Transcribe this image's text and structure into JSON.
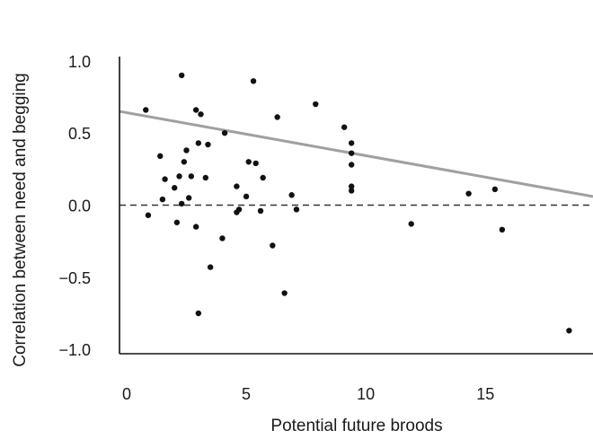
{
  "chart_data": {
    "type": "scatter",
    "xlabel": "Potential future broods",
    "ylabel": "Correlation between need and begging",
    "xlim": [
      -0.3,
      19.5
    ],
    "ylim": [
      -1.03,
      1.03
    ],
    "xticks": [
      0,
      5,
      10,
      15
    ],
    "yticks": [
      1.0,
      0.5,
      0.0,
      -0.5,
      -1.0
    ],
    "ytick_labels": [
      "1.0",
      "0.5",
      "0.0",
      "−0.5",
      "−1.0"
    ],
    "grid": false,
    "zero_line": {
      "y": 0,
      "style": "dashed"
    },
    "trend_line": {
      "x": [
        -0.3,
        19.5
      ],
      "y": [
        0.65,
        0.06
      ],
      "color": "#a0a0a0"
    },
    "points": [
      {
        "x": 0.8,
        "y": 0.66
      },
      {
        "x": 0.9,
        "y": -0.07
      },
      {
        "x": 1.4,
        "y": 0.34
      },
      {
        "x": 1.5,
        "y": 0.04
      },
      {
        "x": 1.6,
        "y": 0.18
      },
      {
        "x": 2.0,
        "y": 0.12
      },
      {
        "x": 2.1,
        "y": -0.12
      },
      {
        "x": 2.2,
        "y": 0.2
      },
      {
        "x": 2.3,
        "y": 0.01
      },
      {
        "x": 2.3,
        "y": 0.9
      },
      {
        "x": 2.4,
        "y": 0.3
      },
      {
        "x": 2.5,
        "y": 0.38
      },
      {
        "x": 2.6,
        "y": 0.05
      },
      {
        "x": 2.7,
        "y": 0.2
      },
      {
        "x": 2.9,
        "y": 0.66
      },
      {
        "x": 3.0,
        "y": 0.43
      },
      {
        "x": 2.9,
        "y": -0.15
      },
      {
        "x": 3.1,
        "y": 0.63
      },
      {
        "x": 3.0,
        "y": -0.75
      },
      {
        "x": 3.3,
        "y": 0.19
      },
      {
        "x": 3.4,
        "y": 0.42
      },
      {
        "x": 3.5,
        "y": -0.43
      },
      {
        "x": 4.1,
        "y": 0.5
      },
      {
        "x": 4.0,
        "y": -0.23
      },
      {
        "x": 4.6,
        "y": 0.13
      },
      {
        "x": 4.7,
        "y": -0.03
      },
      {
        "x": 4.6,
        "y": -0.05
      },
      {
        "x": 5.1,
        "y": 0.3
      },
      {
        "x": 5.0,
        "y": 0.06
      },
      {
        "x": 5.3,
        "y": 0.86
      },
      {
        "x": 5.4,
        "y": 0.29
      },
      {
        "x": 5.6,
        "y": -0.04
      },
      {
        "x": 5.7,
        "y": 0.19
      },
      {
        "x": 6.1,
        "y": -0.28
      },
      {
        "x": 6.3,
        "y": 0.61
      },
      {
        "x": 6.6,
        "y": -0.61
      },
      {
        "x": 6.9,
        "y": 0.07
      },
      {
        "x": 7.1,
        "y": -0.03
      },
      {
        "x": 7.9,
        "y": 0.7
      },
      {
        "x": 9.1,
        "y": 0.54
      },
      {
        "x": 9.4,
        "y": 0.43
      },
      {
        "x": 9.4,
        "y": 0.36
      },
      {
        "x": 9.4,
        "y": 0.28
      },
      {
        "x": 9.4,
        "y": 0.13
      },
      {
        "x": 9.4,
        "y": 0.1
      },
      {
        "x": 11.9,
        "y": -0.13
      },
      {
        "x": 14.3,
        "y": 0.08
      },
      {
        "x": 15.4,
        "y": 0.11
      },
      {
        "x": 15.7,
        "y": -0.17
      },
      {
        "x": 18.5,
        "y": -0.87
      }
    ]
  }
}
